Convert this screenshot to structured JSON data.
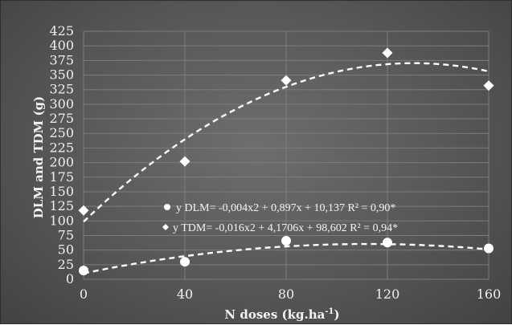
{
  "chart_data": {
    "type": "scatter",
    "xlabel": "N doses (kg.ha",
    "xlabel_sup": "-1",
    "xlabel_end": ")",
    "ylabel": "DLM and TDM (g)",
    "xlim": [
      0,
      160
    ],
    "ylim": [
      0,
      425
    ],
    "x_ticks": [
      0,
      40,
      80,
      120,
      160
    ],
    "y_ticks": [
      0,
      25,
      50,
      75,
      100,
      125,
      150,
      175,
      200,
      225,
      250,
      275,
      300,
      325,
      350,
      375,
      400,
      425
    ],
    "grid": true,
    "series": [
      {
        "name": "DLM",
        "marker": "circle",
        "x": [
          0,
          40,
          80,
          120,
          160
        ],
        "y": [
          15,
          30,
          66,
          63,
          53
        ],
        "fit": {
          "a": -0.004,
          "b": 0.897,
          "c": 10.137
        },
        "legend_text": "y DLM= -0,004x2 + 0,897x + 10,137  R² = 0,90*"
      },
      {
        "name": "TDM",
        "marker": "diamond",
        "x": [
          0,
          40,
          80,
          120,
          160
        ],
        "y": [
          118,
          202,
          341,
          388,
          332
        ],
        "fit": {
          "a": -0.016,
          "b": 4.1706,
          "c": 98.602
        },
        "legend_text": "y TDM= -0,016x2 + 4,1706x + 98,602  R² = 0,94*"
      }
    ],
    "colors": {
      "marker": "#ffffff",
      "fit_line": "#ffffff",
      "grid": "#7d7d7d",
      "text": "#efefef"
    }
  }
}
